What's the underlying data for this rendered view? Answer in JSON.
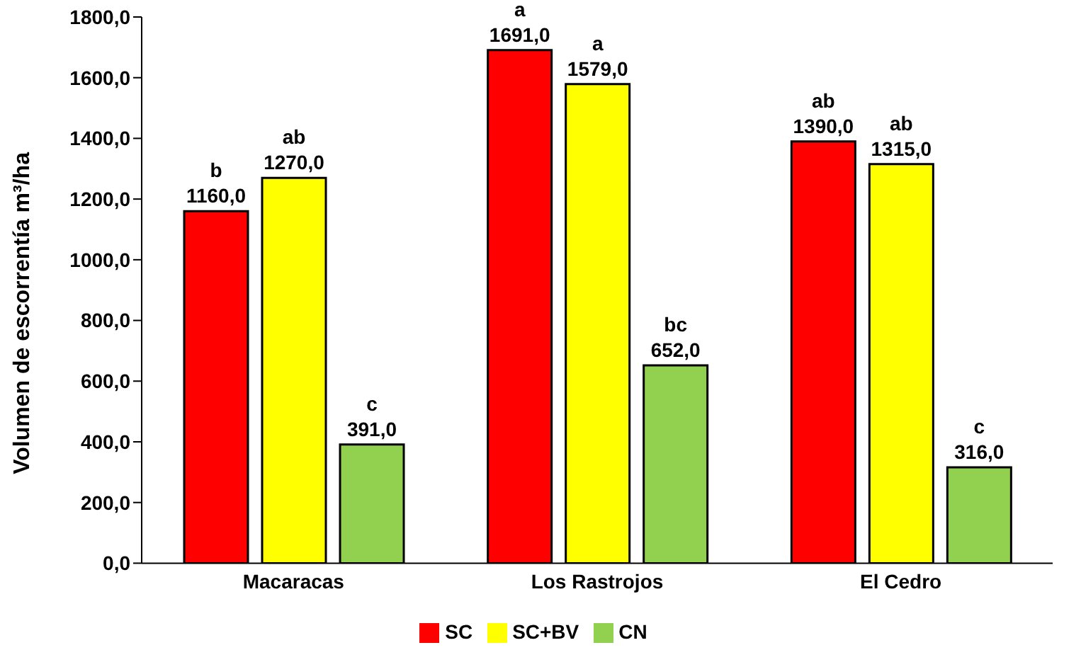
{
  "chart_data": {
    "type": "bar",
    "ylabel": "Volumen de escorrentía m³/ha",
    "categories": [
      "Macaracas",
      "Los Rastrojos",
      "El Cedro"
    ],
    "series": [
      {
        "name": "SC",
        "color": "#ff0000",
        "values": [
          1160,
          1691,
          1390
        ],
        "value_labels": [
          "1160,0",
          "1691,0",
          "1390,0"
        ]
      },
      {
        "name": "SC+BV",
        "color": "#ffff00",
        "values": [
          1270,
          1579,
          1315
        ],
        "value_labels": [
          "1270,0",
          "1579,0",
          "1315,0"
        ]
      },
      {
        "name": "CN",
        "color": "#92d050",
        "values": [
          391,
          652,
          316
        ],
        "value_labels": [
          "391,0",
          "652,0",
          "316,0"
        ]
      }
    ],
    "annotations": [
      "b",
      "a",
      "ab",
      "ab",
      "a",
      "ab",
      "c",
      "bc",
      "c"
    ],
    "ylim": [
      0,
      1800
    ],
    "yticks": [
      {
        "value": 0,
        "label": "0,0"
      },
      {
        "value": 200,
        "label": "200,0"
      },
      {
        "value": 400,
        "label": "400,0"
      },
      {
        "value": 600,
        "label": "600,0"
      },
      {
        "value": 800,
        "label": "800,0"
      },
      {
        "value": 1000,
        "label": "1000,0"
      },
      {
        "value": 1200,
        "label": "1200,0"
      },
      {
        "value": 1400,
        "label": "1400,0"
      },
      {
        "value": 1600,
        "label": "1600,0"
      },
      {
        "value": 1800,
        "label": "1800,0"
      }
    ],
    "grid": false,
    "legend": "bottom"
  }
}
